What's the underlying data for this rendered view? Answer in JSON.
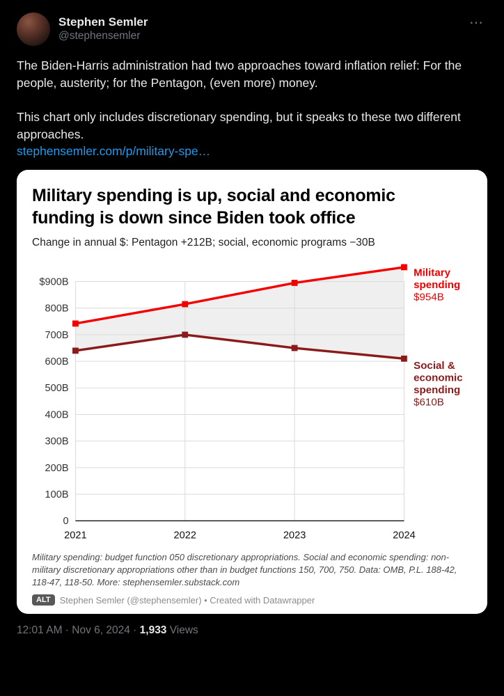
{
  "tweet": {
    "author_name": "Stephen Semler",
    "author_handle": "@stephensemler",
    "more_label": "⋯",
    "body_paragraph1": "The Biden-Harris administration had two approaches toward inflation relief: For the people, austerity; for the Pentagon, (even more) money.",
    "body_paragraph2": "This chart only includes discretionary spending, but it speaks to these two different approaches.",
    "link_text": "stephensemler.com/p/military-spe…",
    "timestamp": "12:01 AM · Nov 6, 2024",
    "separator": " · ",
    "views_count": "1,933",
    "views_label": " Views"
  },
  "card": {
    "alt_badge": "ALT",
    "attribution": "Stephen Semler (@stephensemler) • Created with Datawrapper",
    "footnote": "Military spending: budget function 050 discretionary appropriations. Social and economic spending: non-military discretionary appropriations other than in budget functions 150, 700, 750. Data: OMB, P.L. 188-42, 118-47, 118-50. More: stephensemler.substack.com"
  },
  "chart_data": {
    "type": "line",
    "title": "Military spending is up, social and economic funding is down since Biden took office",
    "subtitle": "Change in annual $: Pentagon +212B; social, economic programs −30B",
    "x": [
      2021,
      2022,
      2023,
      2024
    ],
    "series": [
      {
        "name": "Military spending",
        "label_lines": [
          "Military",
          "spending"
        ],
        "end_label": "$954B",
        "color": "#f20000",
        "values": [
          742,
          815,
          895,
          954
        ]
      },
      {
        "name": "Social & economic spending",
        "label_lines": [
          "Social &",
          "economic",
          "spending"
        ],
        "end_label": "$610B",
        "color": "#8b1a1a",
        "values": [
          640,
          700,
          650,
          610
        ]
      }
    ],
    "ylim": [
      0,
      960
    ],
    "yticks": [
      0,
      100,
      200,
      300,
      400,
      500,
      600,
      700,
      800,
      900
    ],
    "ytick_labels": [
      "0",
      "100B",
      "200B",
      "300B",
      "400B",
      "500B",
      "600B",
      "700B",
      "800B",
      "$900B"
    ],
    "grid": true,
    "area_fill": "#efefef",
    "legend_position": "right"
  }
}
